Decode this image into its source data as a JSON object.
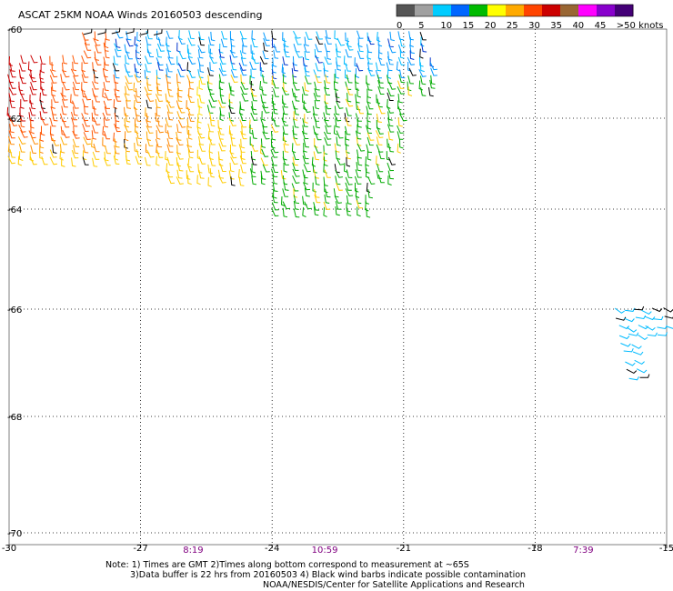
{
  "chart_data": {
    "type": "scatter",
    "title": "ASCAT 25KM NOAA Winds 20160503 descending",
    "legend": {
      "placement": "top-right",
      "labels": [
        "0",
        "5",
        "10",
        "15",
        "20",
        "25",
        "30",
        "35",
        "40",
        "45",
        ">50 knots"
      ],
      "colors": [
        "#555555",
        "#a0a0a0",
        "#00ccff",
        "#0066ff",
        "#00bb00",
        "#ffff00",
        "#ffaa00",
        "#ff4400",
        "#cc0000",
        "#996633",
        "#ff00ff",
        "#8800cc",
        "#440077"
      ]
    },
    "x_axis": {
      "range": [
        -30,
        -15
      ],
      "tick_labels": [
        "-30",
        "-27",
        "-24",
        "-21",
        "-18",
        "-15"
      ],
      "tick_values": [
        -30,
        -27,
        -24,
        -21,
        -18,
        -15
      ]
    },
    "y_axis": {
      "range": [
        -70,
        -60
      ],
      "tick_labels": [
        "-60",
        "-62",
        "-64",
        "-66",
        "-68",
        "-70"
      ],
      "tick_values": [
        -60,
        -62,
        -64,
        -66,
        -68,
        -70
      ]
    },
    "grid": true,
    "time_labels": [
      {
        "text": "8:19",
        "lon": -25.8
      },
      {
        "text": "10:59",
        "lon": -22.8
      },
      {
        "text": "7:39",
        "lon": -16.9
      }
    ],
    "swaths": [
      {
        "name": "main",
        "lon_range": [
          -30,
          -20.5
        ],
        "lat_range": [
          -64,
          -60
        ],
        "speed_note": "high-wind region in west"
      },
      {
        "name": "east",
        "lon_range": [
          -16.2,
          -15
        ],
        "lat_range": [
          -67,
          -66
        ],
        "speed_note": "light winds"
      }
    ],
    "notes": [
      "Note: 1) Times are GMT 2)Times along bottom correspond to measurement at ~65S",
      "3)Data buffer is 22 hrs from 20160503 4) Black wind barbs indicate possible contamination",
      "NOAA/NESDIS/Center for Satellite Applications and Research"
    ]
  }
}
